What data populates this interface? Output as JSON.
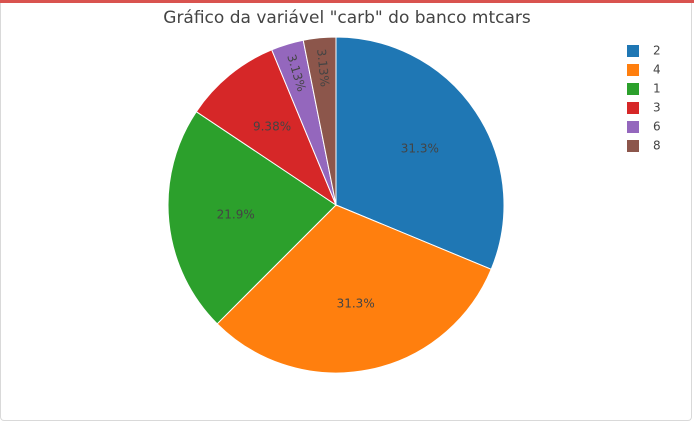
{
  "chart_data": {
    "type": "pie",
    "title": "Gráfico da variável \"carb\" do banco mtcars",
    "slices": [
      {
        "label": "2",
        "value": 10,
        "percent_text": "31.3%",
        "color": "#1f77b4"
      },
      {
        "label": "4",
        "value": 10,
        "percent_text": "31.3%",
        "color": "#ff7f0e"
      },
      {
        "label": "1",
        "value": 7,
        "percent_text": "21.9%",
        "color": "#2ca02c"
      },
      {
        "label": "3",
        "value": 3,
        "percent_text": "9.38%",
        "color": "#d62728"
      },
      {
        "label": "6",
        "value": 1,
        "percent_text": "3.13%",
        "color": "#9467bd"
      },
      {
        "label": "8",
        "value": 1,
        "percent_text": "3.13%",
        "color": "#8c564b"
      }
    ],
    "legend": [
      "2",
      "4",
      "1",
      "3",
      "6",
      "8"
    ],
    "legend_position": "top-right",
    "direction": "clockwise"
  },
  "colors": {
    "top_bar": "#d9534f",
    "text": "#444444"
  }
}
